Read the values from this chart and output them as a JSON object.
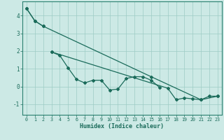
{
  "xlabel": "Humidex (Indice chaleur)",
  "bg_color": "#cce9e5",
  "grid_color": "#9eccc5",
  "line_color": "#1a6b5a",
  "spine_color": "#2a8070",
  "xlim": [
    -0.5,
    23.5
  ],
  "ylim": [
    -1.6,
    4.8
  ],
  "yticks": [
    -1,
    0,
    1,
    2,
    3,
    4
  ],
  "xticks": [
    0,
    1,
    2,
    3,
    4,
    5,
    6,
    7,
    8,
    9,
    10,
    11,
    12,
    13,
    14,
    15,
    16,
    17,
    18,
    19,
    20,
    21,
    22,
    23
  ],
  "xtick_labels": [
    "0",
    "1",
    "2",
    "3",
    "4",
    "5",
    "6",
    "7",
    "8",
    "9",
    "10",
    "11",
    "12",
    "13",
    "14",
    "15",
    "16",
    "17",
    "18",
    "19",
    "20",
    "21",
    "22",
    "23"
  ],
  "series": [
    {
      "x": [
        0,
        1,
        2
      ],
      "y": [
        4.4,
        3.7,
        3.4
      ]
    },
    {
      "x": [
        0,
        1,
        2,
        15,
        21,
        23
      ],
      "y": [
        4.4,
        3.7,
        3.4,
        0.55,
        -0.75,
        -0.55
      ]
    },
    {
      "x": [
        3,
        4,
        5,
        6,
        7,
        8,
        9,
        10,
        11,
        12,
        13,
        14,
        15,
        16
      ],
      "y": [
        1.95,
        1.75,
        1.05,
        0.4,
        0.2,
        0.35,
        0.35,
        -0.2,
        -0.15,
        0.45,
        0.55,
        0.55,
        0.35,
        -0.05
      ]
    },
    {
      "x": [
        3,
        17,
        18,
        19,
        20,
        21,
        22,
        23
      ],
      "y": [
        1.95,
        -0.1,
        -0.75,
        -0.65,
        -0.7,
        -0.75,
        -0.55,
        -0.55
      ]
    }
  ]
}
